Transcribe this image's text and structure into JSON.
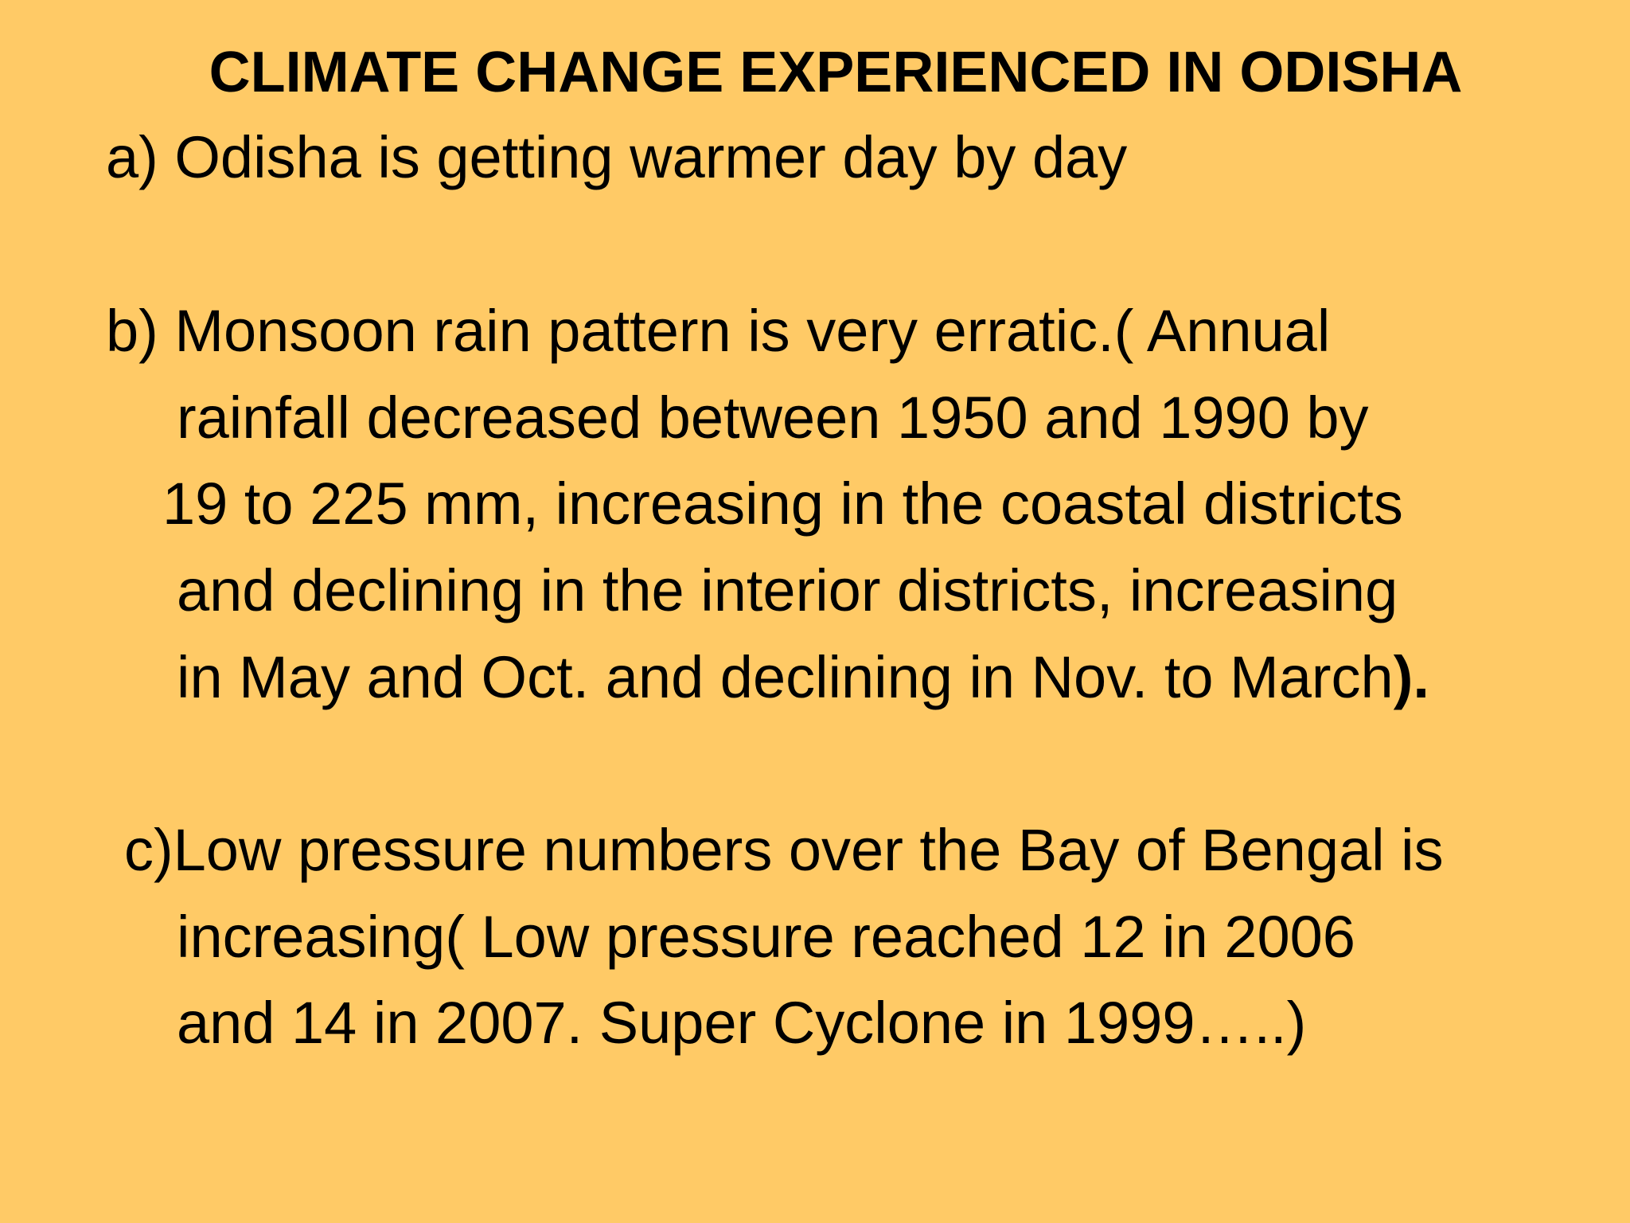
{
  "slide": {
    "title": "CLIMATE CHANGE EXPERIENCED IN ODISHA",
    "point_a": {
      "line1": "a) Odisha is getting warmer day by day"
    },
    "point_b": {
      "line1": "b) Monsoon rain pattern is very erratic.( Annual",
      "line2": "rainfall decreased between 1950 and 1990 by",
      "line3": "19 to 225 mm, increasing in the coastal districts",
      "line4": "and declining in the interior districts, increasing",
      "line5_text": "in May and Oct. and declining in Nov. to March",
      "line5_close": ")."
    },
    "point_c": {
      "line1": "c)Low pressure numbers over the Bay of Bengal is",
      "line2": "increasing( Low pressure reached 12 in 2006",
      "line3": "and 14 in 2007. Super Cyclone in 1999…..)"
    },
    "colors": {
      "background": "#FFCA66",
      "text": "#000000"
    }
  }
}
